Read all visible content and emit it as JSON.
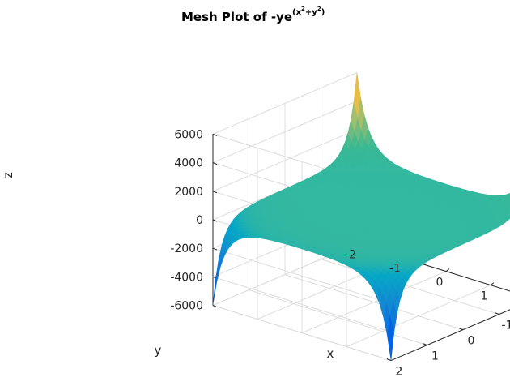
{
  "chart_data": {
    "type": "surface",
    "title": {
      "main": "Mesh Plot of -ye",
      "sup": "(x",
      "sup_exp1": "2",
      "sup_mid": "+y",
      "sup_exp2": "2",
      "sup_end": ")"
    },
    "function": "z = -y*exp(x^2+y^2)",
    "xlabel": "x",
    "ylabel": "y",
    "zlabel": "z",
    "xlim": [
      -2,
      2
    ],
    "ylim": [
      -2,
      2
    ],
    "zlim": [
      -6000,
      6000
    ],
    "xticks": [
      "-2",
      "-1",
      "0",
      "1",
      "2"
    ],
    "yticks": [
      "-2",
      "-1",
      "0",
      "1",
      "2"
    ],
    "zticks": [
      "-6000",
      "-4000",
      "-2000",
      "0",
      "2000",
      "4000",
      "6000"
    ],
    "colormap": "parula",
    "grid": true,
    "colors": {
      "low": "#0072bd",
      "mid": "#33b8a0",
      "high": "#f9fb0e"
    }
  }
}
